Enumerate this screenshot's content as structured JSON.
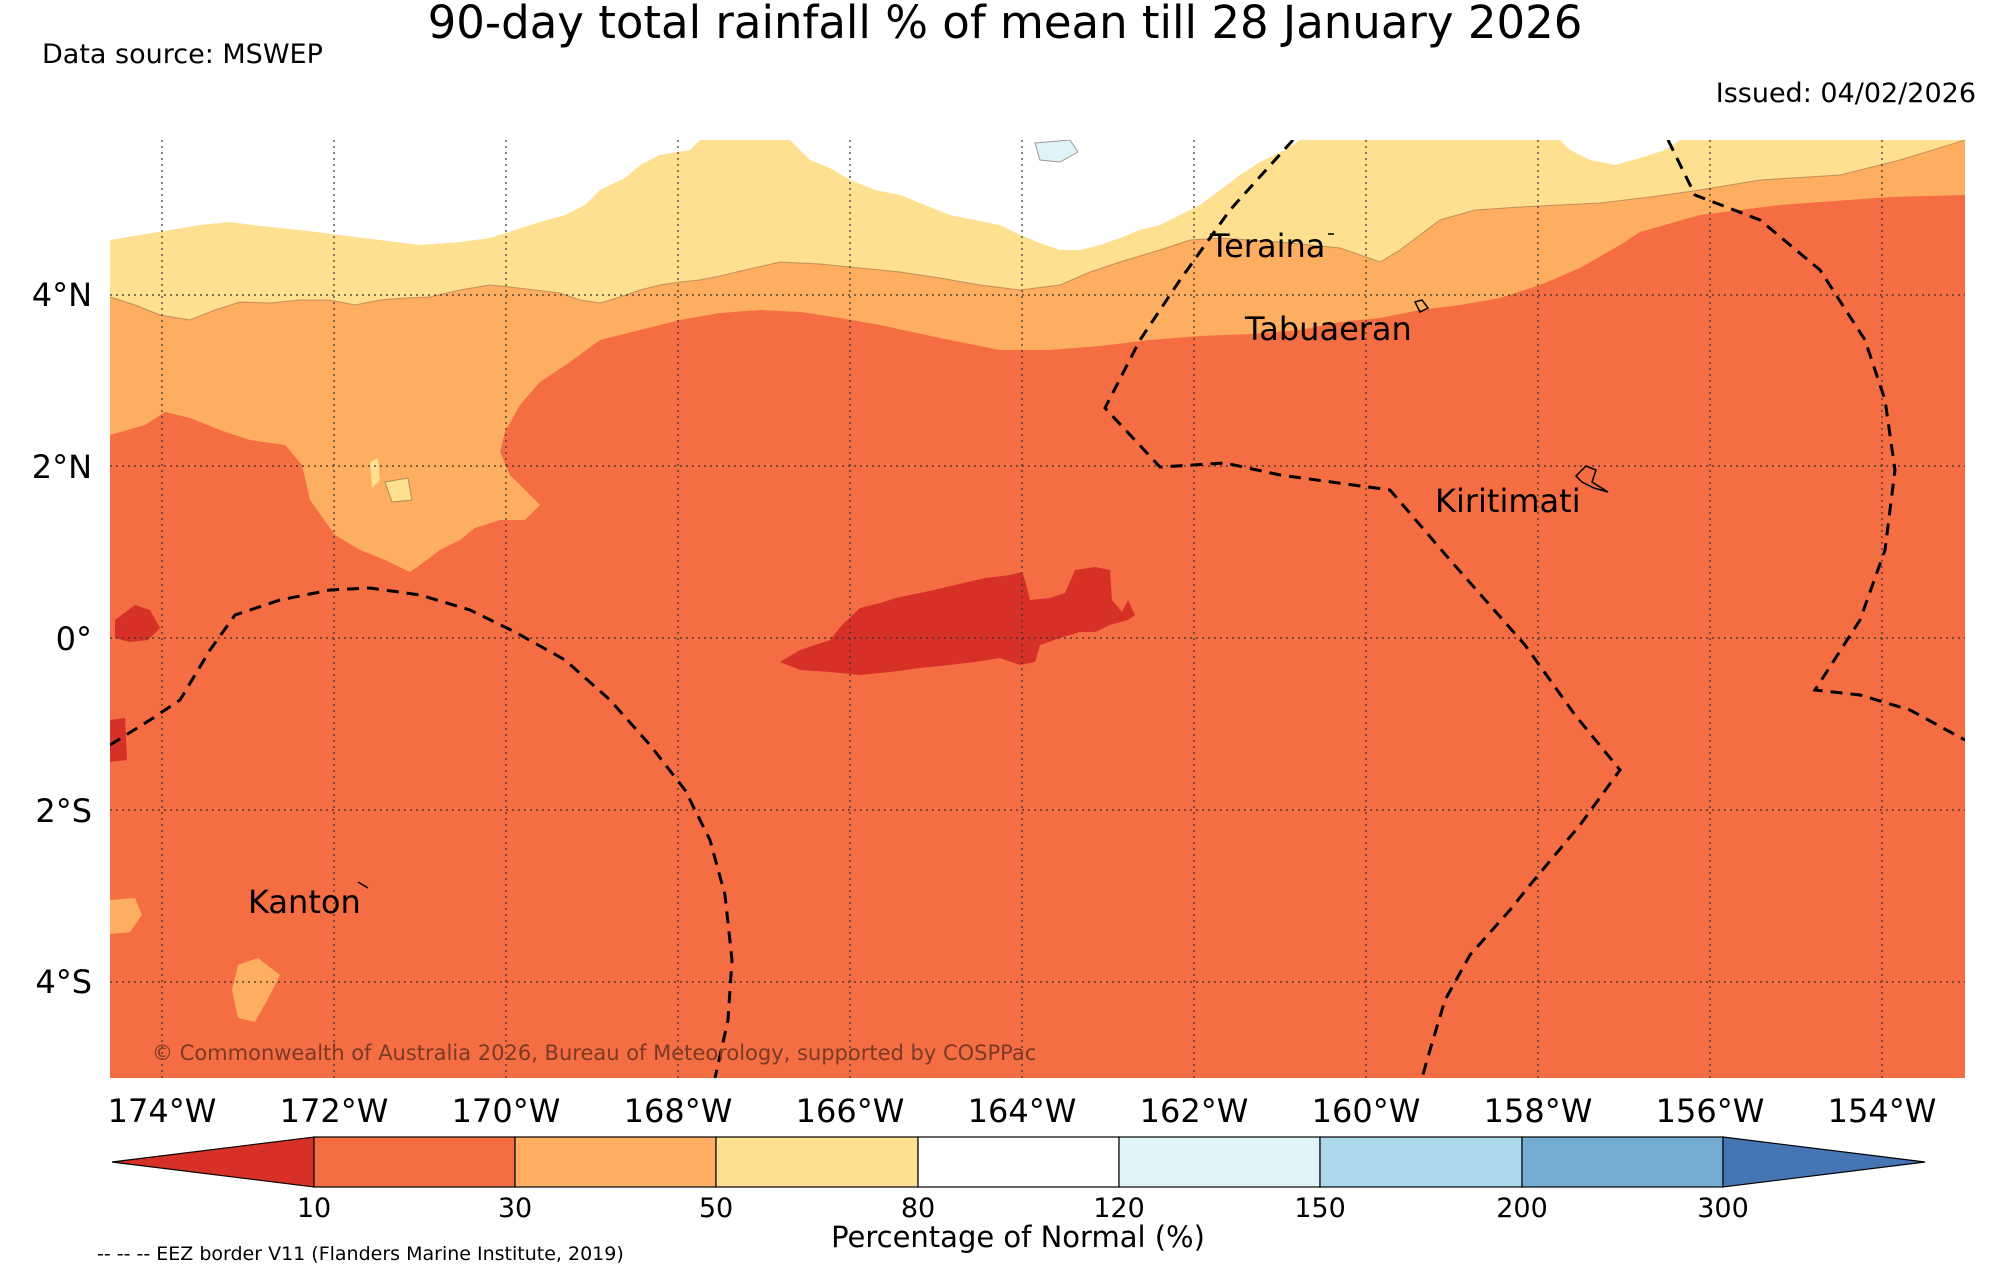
{
  "header": {
    "title": "90-day total rainfall % of mean till 28 January 2026",
    "data_source": "Data source: MSWEP",
    "issued": "Issued: 04/02/2026"
  },
  "map": {
    "lat_labels": [
      "4°N",
      "2°N",
      "0°",
      "2°S",
      "4°S"
    ],
    "lon_labels": [
      "174°W",
      "172°W",
      "170°W",
      "168°W",
      "166°W",
      "164°W",
      "162°W",
      "160°W",
      "158°W",
      "156°W",
      "154°W"
    ],
    "places": {
      "teraina": "Teraina",
      "tabuaeran": "Tabuaeran",
      "kiritimati": "Kiritimati",
      "kanton": "Kanton"
    },
    "copyright": "© Commonwealth of Australia 2026, Bureau of Meteorology, supported by COSPPac"
  },
  "legend": {
    "tick_labels": [
      "10",
      "30",
      "50",
      "80",
      "120",
      "150",
      "200",
      "300"
    ],
    "colors": [
      "#d73027",
      "#f46d43",
      "#fdae61",
      "#fee090",
      "#ffffff",
      "#e0f3f8",
      "#abd9e9",
      "#74add1",
      "#4575b4"
    ],
    "label": "Percentage of Normal (%)",
    "eez_note": "-- -- -- EEZ border V11 (Flanders Marine Institute, 2019)"
  }
}
